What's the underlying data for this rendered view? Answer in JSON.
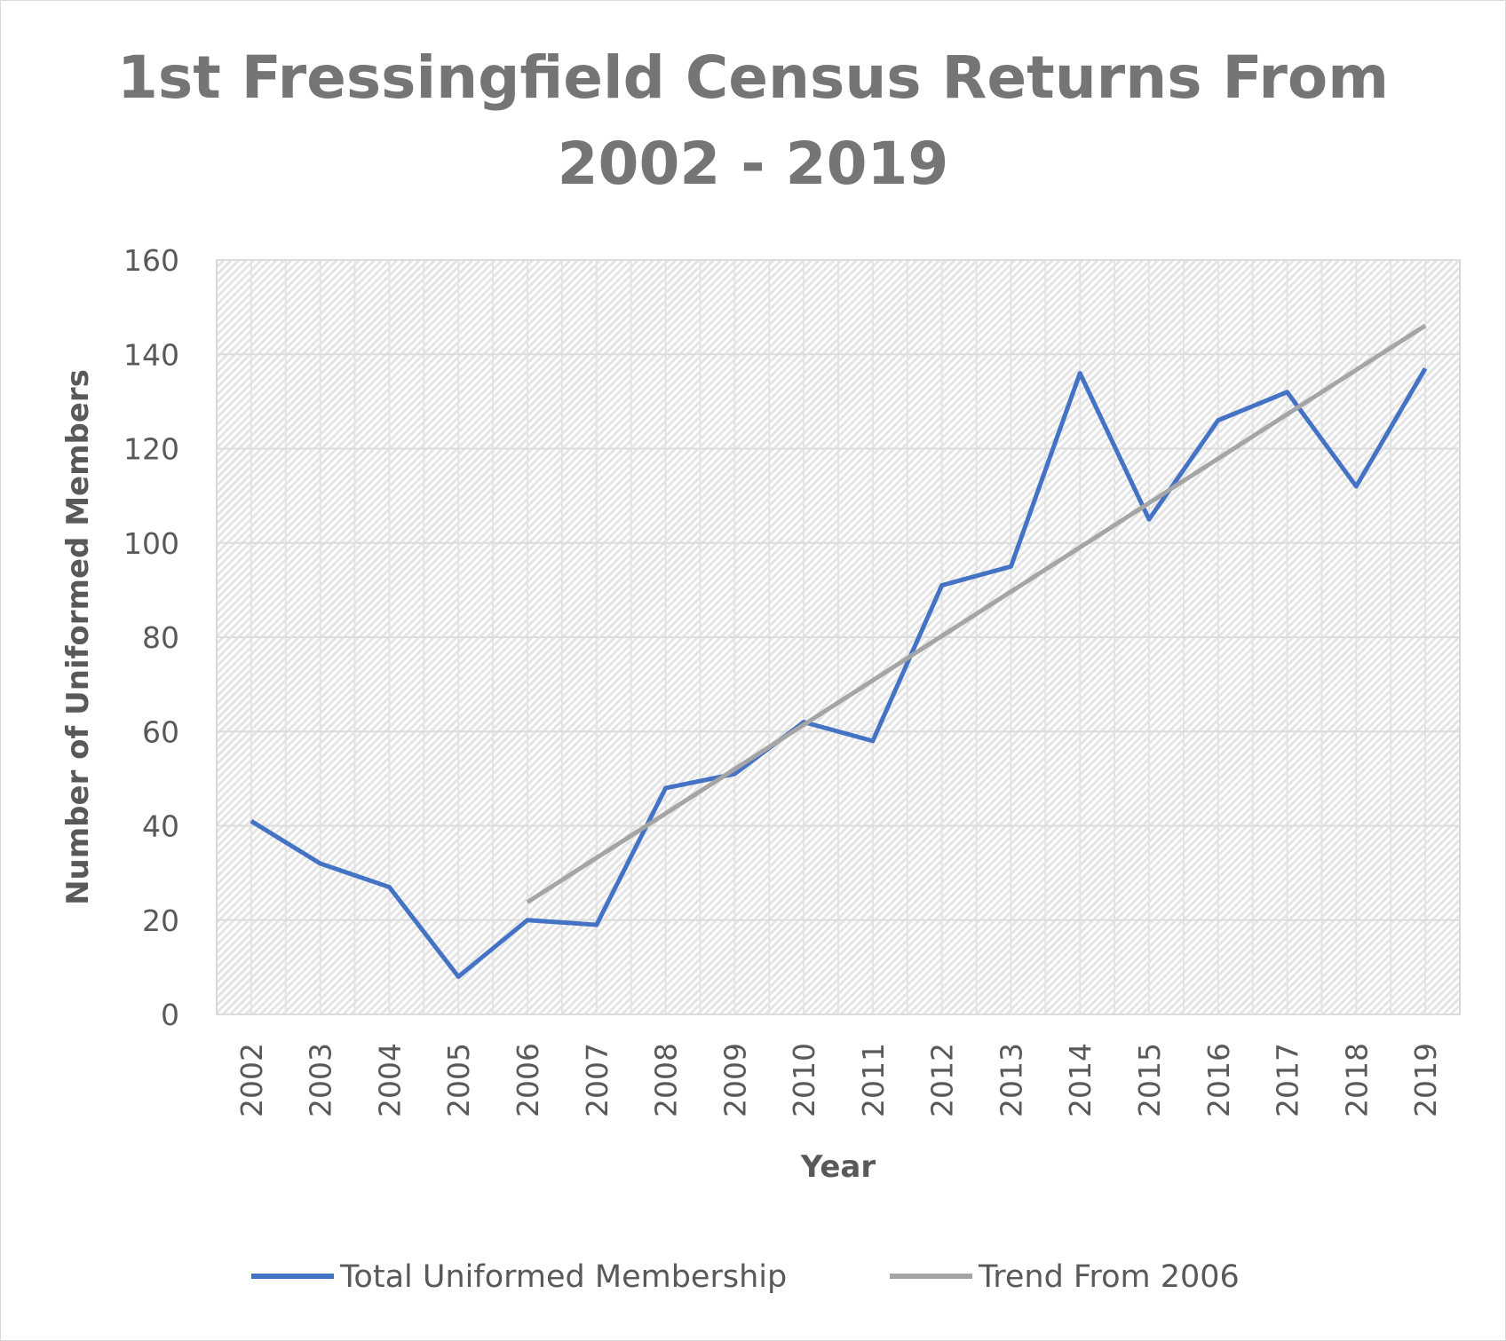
{
  "chart_data": {
    "type": "line",
    "title": "1st Fressingfield Census Returns From 2002 - 2019",
    "title_lines": [
      "1st Fressingfield Census Returns From",
      "2002 - 2019"
    ],
    "xlabel": "Year",
    "ylabel": "Number of Uniformed Members",
    "ylim": [
      0,
      160
    ],
    "yticks": [
      "0",
      "20",
      "40",
      "60",
      "80",
      "100",
      "120",
      "140",
      "160"
    ],
    "categories": [
      "2002",
      "2003",
      "2004",
      "2005",
      "2006",
      "2007",
      "2008",
      "2009",
      "2010",
      "2011",
      "2012",
      "2013",
      "2014",
      "2015",
      "2016",
      "2017",
      "2018",
      "2019"
    ],
    "series": [
      {
        "name": "Total Uniformed Membership",
        "color": "#4472c4",
        "values": [
          41,
          32,
          27,
          8,
          20,
          19,
          48,
          51,
          62,
          58,
          91,
          95,
          136,
          105,
          126,
          132,
          112,
          137
        ]
      },
      {
        "name": "Trend From 2006",
        "color": "#a5a5a5",
        "type": "linear-trend",
        "start": "2006",
        "end": "2019",
        "values_at_ends": [
          23.8,
          146.1
        ]
      }
    ],
    "grid": true,
    "legend": "bottom"
  }
}
